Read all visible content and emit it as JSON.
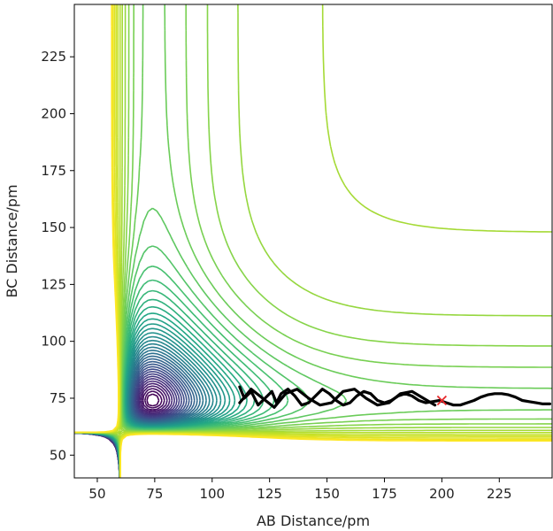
{
  "chart_data": {
    "type": "contour",
    "xlabel": "AB Distance/pm",
    "ylabel": "BC Distance/pm",
    "xlim": [
      40,
      248
    ],
    "ylim": [
      40,
      248
    ],
    "xticks": [
      50,
      75,
      100,
      125,
      150,
      175,
      200,
      225
    ],
    "yticks": [
      50,
      75,
      100,
      125,
      150,
      175,
      200,
      225
    ],
    "colormap": "viridis",
    "colors": {
      "trajectory": "#000000",
      "marker": "#e8282b"
    },
    "contour_levels": 45,
    "trajectory": {
      "x": [
        112,
        114,
        117,
        120,
        123,
        126,
        128,
        130,
        133,
        136,
        139,
        142,
        145,
        148,
        151,
        154,
        157,
        160,
        163,
        166,
        169,
        172,
        175,
        178,
        181,
        184,
        187,
        190,
        193,
        196,
        199,
        202,
        205,
        208,
        211,
        214,
        217,
        220,
        223,
        226,
        229,
        232,
        235,
        238,
        241,
        244,
        247
      ],
      "y": [
        80,
        75,
        78,
        72,
        75,
        78,
        73,
        77,
        79,
        76,
        72,
        73,
        76,
        79,
        77,
        74,
        72,
        73,
        76,
        78,
        77,
        74,
        73,
        74,
        76,
        77,
        76,
        74,
        73,
        73.5,
        74,
        73,
        72,
        72,
        73,
        74,
        75.5,
        76.5,
        77,
        77,
        76.5,
        75.5,
        74,
        73.5,
        73,
        72.5,
        72.5
      ]
    },
    "trajectory_band": {
      "x": [
        112,
        117,
        122,
        127,
        132,
        137,
        142,
        147,
        152,
        157,
        162,
        167,
        172,
        177,
        182,
        187,
        192,
        197
      ],
      "y": [
        73,
        79,
        75,
        71,
        77,
        79,
        75,
        72,
        73,
        78,
        79,
        75,
        72,
        73,
        77,
        78,
        75,
        72
      ]
    },
    "marker": {
      "symbol": "x",
      "x": 200,
      "y": 74
    }
  }
}
